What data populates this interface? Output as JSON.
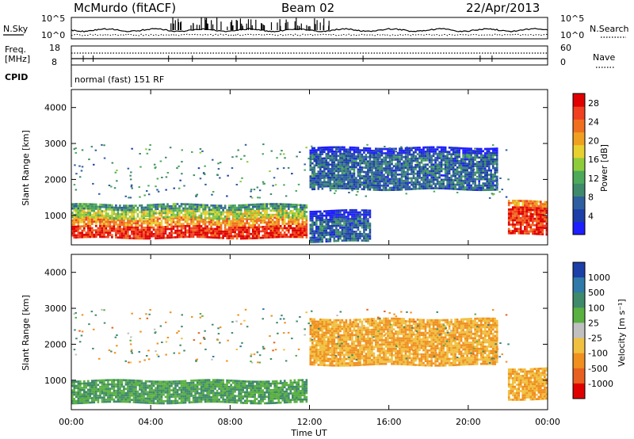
{
  "header": {
    "station": "McMurdo (fitACF)",
    "beam": "Beam 02",
    "date": "22/Apr/2013"
  },
  "noise_panel": {
    "left_label": "N.Sky",
    "right_label": "N.Search",
    "y_ticks": [
      "10^5",
      "10^0"
    ],
    "right_ticks": [
      "10^5",
      "10^0"
    ]
  },
  "freq_panel": {
    "left_label_1": "Freq.",
    "left_label_2": "[MHz]",
    "right_label": "Nave",
    "left_ticks": [
      "18",
      "8"
    ],
    "right_ticks": [
      "60",
      "0"
    ]
  },
  "cpid_panel": {
    "label": "CPID",
    "text": "normal (fast) 151 RF"
  },
  "power_panel": {
    "ylabel": "Slant Range [km]",
    "y_ticks": [
      "4000",
      "3000",
      "2000",
      "1000"
    ],
    "colorbar_label": "Power [dB]",
    "colorbar_ticks": [
      "28",
      "24",
      "20",
      "16",
      "12",
      "8",
      "4"
    ],
    "colors": [
      "#1e1eff",
      "#1c3fa8",
      "#2f5fa0",
      "#3f8a6a",
      "#4caa5a",
      "#8fcc3c",
      "#e8d030",
      "#f0a020",
      "#f07020",
      "#f04020",
      "#e00000"
    ]
  },
  "velocity_panel": {
    "ylabel": "Slant Range [km]",
    "y_ticks": [
      "4000",
      "3000",
      "2000",
      "1000"
    ],
    "colorbar_label": "Velocity [m s⁻¹]",
    "colorbar_ticks": [
      "1000",
      "500",
      "100",
      "25",
      "-25",
      "-100",
      "-500",
      "-1000"
    ],
    "colors": [
      "#1c3fa8",
      "#2f7aa8",
      "#3f8a6a",
      "#5ab040",
      "#c0c0c0",
      "#f0c040",
      "#f09020",
      "#e86020",
      "#e00000"
    ]
  },
  "x_axis": {
    "label": "Time UT",
    "ticks": [
      "00:00",
      "04:00",
      "08:00",
      "12:00",
      "16:00",
      "20:00",
      "00:00"
    ]
  },
  "chart_data": {
    "type": "heatmap",
    "title": "McMurdo (fitACF)  Beam 02  22/Apr/2013",
    "xlabel": "Time UT",
    "ylabel": "Slant Range [km]",
    "xlim": [
      0,
      24
    ],
    "ylim": [
      180,
      4500
    ],
    "power_scale": {
      "label": "Power [dB]",
      "range": [
        0,
        30
      ]
    },
    "velocity_scale": {
      "label": "Velocity [m s⁻¹]",
      "range": [
        -1000,
        1000
      ]
    },
    "regions": [
      {
        "panel": "power",
        "t0": 0.0,
        "t1": 11.8,
        "r0": 350,
        "r1": 900,
        "value_db": 28
      },
      {
        "panel": "power",
        "t0": 0.0,
        "t1": 11.8,
        "r0": 900,
        "r1": 1300,
        "value_db": 16
      },
      {
        "panel": "power",
        "t0": 12.0,
        "t1": 15.0,
        "r0": 250,
        "r1": 1100,
        "value_db": 6
      },
      {
        "panel": "power",
        "t0": 12.0,
        "t1": 21.5,
        "r0": 1700,
        "r1": 2900,
        "value_db": 6
      },
      {
        "panel": "power",
        "t0": 22.0,
        "t1": 24.0,
        "r0": 450,
        "r1": 1400,
        "value_db": 28
      },
      {
        "panel": "velocity",
        "t0": 0.0,
        "t1": 11.8,
        "r0": 350,
        "r1": 1000,
        "value_ms": 100
      },
      {
        "panel": "velocity",
        "t0": 12.0,
        "t1": 21.5,
        "r0": 1400,
        "r1": 2700,
        "value_ms": -100
      },
      {
        "panel": "velocity",
        "t0": 22.0,
        "t1": 24.0,
        "r0": 450,
        "r1": 1300,
        "value_ms": -100
      }
    ]
  }
}
